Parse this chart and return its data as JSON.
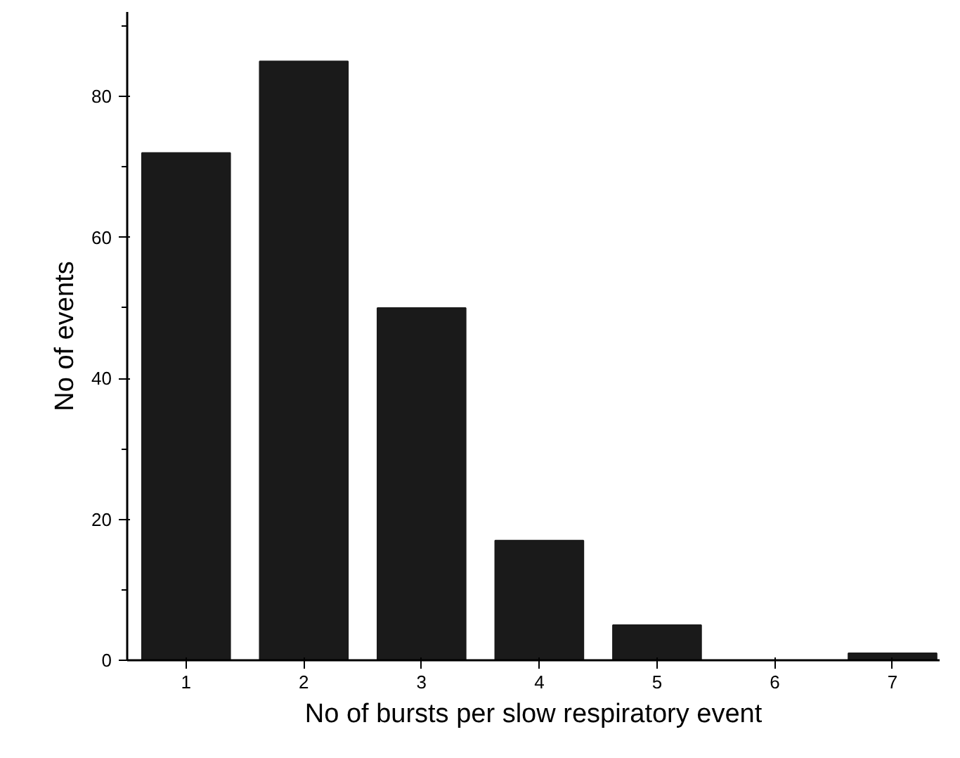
{
  "chart_data": {
    "type": "bar",
    "xlabel": "No of bursts per slow respiratory event",
    "ylabel": "No of events",
    "x": [
      1,
      2,
      3,
      4,
      5,
      6,
      7
    ],
    "values": [
      72,
      85,
      50,
      17,
      5,
      0,
      1
    ],
    "color": "#1a1a1a",
    "xlim": [
      0.5,
      7.4
    ],
    "xticks": [
      1,
      2,
      3,
      4,
      5,
      6,
      7
    ],
    "ylim": [
      0,
      92
    ],
    "yticks": [
      0,
      20,
      40,
      60,
      80
    ],
    "grid": false
  }
}
